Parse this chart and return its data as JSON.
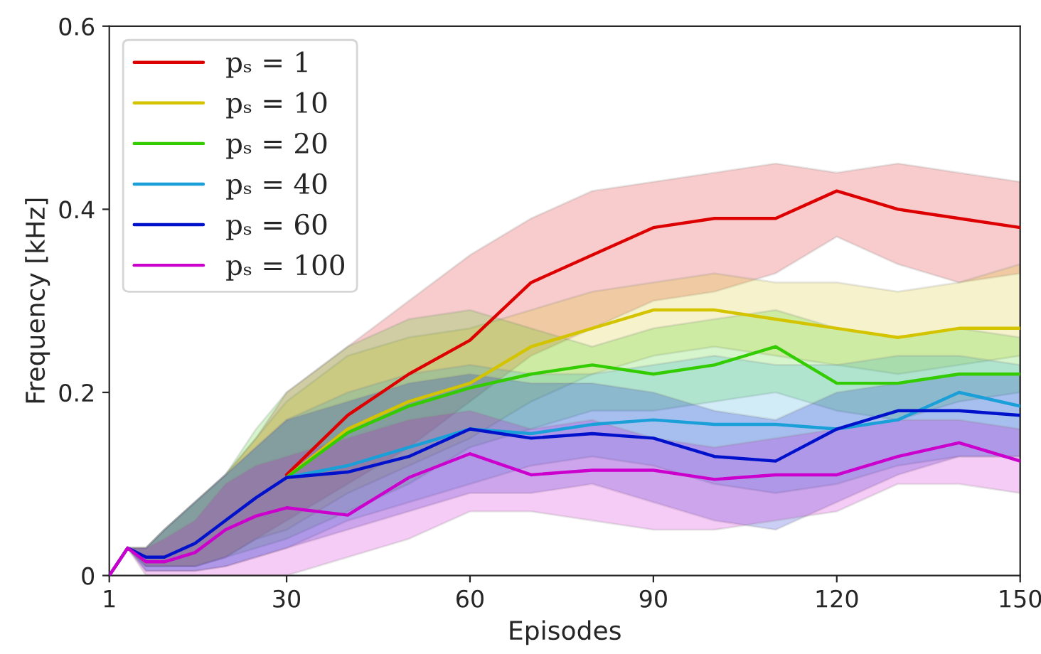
{
  "chart_data": {
    "type": "line",
    "xlabel": "Episodes",
    "ylabel": "Frequency [kHz]",
    "x": [
      1,
      4,
      7,
      10,
      15,
      20,
      25,
      30,
      40,
      50,
      60,
      70,
      80,
      90,
      100,
      110,
      120,
      130,
      140,
      150
    ],
    "xlim": [
      1,
      150
    ],
    "xticks": [
      1,
      30,
      60,
      90,
      120,
      150
    ],
    "ylim": [
      0,
      0.6
    ],
    "yticks": [
      0,
      {
        "value": 0.2,
        "label": "0.2"
      },
      {
        "value": 0.4,
        "label": "0.4"
      },
      {
        "value": 0.6,
        "label": "0.6"
      }
    ],
    "grid": false,
    "legend": "top left",
    "marker": "none",
    "line_style": "solid",
    "series": [
      {
        "name": "pₛ = 1",
        "color": "#dd0000",
        "values": [
          null,
          null,
          null,
          null,
          null,
          null,
          null,
          0.11,
          0.175,
          0.22,
          0.257,
          0.32,
          0.35,
          0.38,
          0.39,
          0.39,
          0.42,
          0.4,
          0.39,
          0.38
        ],
        "lower": [
          0,
          0.03,
          0.01,
          0.01,
          0.01,
          0.02,
          0.04,
          0.06,
          0.1,
          0.14,
          0.19,
          0.24,
          0.27,
          0.3,
          0.31,
          0.33,
          0.37,
          0.34,
          0.32,
          0.33
        ],
        "upper": [
          0,
          0.03,
          0.03,
          0.05,
          0.08,
          0.11,
          0.15,
          0.2,
          0.25,
          0.3,
          0.35,
          0.39,
          0.42,
          0.43,
          0.44,
          0.45,
          0.44,
          0.45,
          0.44,
          0.43
        ]
      },
      {
        "name": "pₛ = 10",
        "color": "#d4c400",
        "values": [
          null,
          null,
          null,
          null,
          null,
          null,
          null,
          0.107,
          0.16,
          0.19,
          0.21,
          0.25,
          0.27,
          0.29,
          0.29,
          0.28,
          0.27,
          0.26,
          0.27,
          0.27
        ],
        "lower": [
          0,
          0.03,
          0.01,
          0.01,
          0.01,
          0.02,
          0.04,
          0.05,
          0.09,
          0.12,
          0.15,
          0.19,
          0.22,
          0.24,
          0.25,
          0.24,
          0.23,
          0.22,
          0.23,
          0.24
        ],
        "upper": [
          0,
          0.03,
          0.03,
          0.05,
          0.08,
          0.11,
          0.15,
          0.19,
          0.24,
          0.26,
          0.27,
          0.29,
          0.31,
          0.32,
          0.33,
          0.32,
          0.32,
          0.31,
          0.32,
          0.34
        ]
      },
      {
        "name": "pₛ = 20",
        "color": "#33cc00",
        "values": [
          null,
          null,
          null,
          null,
          null,
          null,
          null,
          0.107,
          0.156,
          0.185,
          0.205,
          0.22,
          0.23,
          0.22,
          0.23,
          0.25,
          0.21,
          0.21,
          0.22,
          0.22
        ],
        "lower": [
          0,
          0.03,
          0.01,
          0.01,
          0.01,
          0.02,
          0.03,
          0.04,
          0.07,
          0.1,
          0.14,
          0.16,
          0.18,
          0.18,
          0.19,
          0.2,
          0.18,
          0.17,
          0.19,
          0.2
        ],
        "upper": [
          0,
          0.03,
          0.03,
          0.05,
          0.08,
          0.11,
          0.16,
          0.2,
          0.25,
          0.28,
          0.29,
          0.27,
          0.25,
          0.27,
          0.28,
          0.29,
          0.27,
          0.26,
          0.27,
          0.26
        ]
      },
      {
        "name": "pₛ = 40",
        "color": "#1a9fd9",
        "values": [
          null,
          null,
          null,
          null,
          null,
          null,
          null,
          0.107,
          0.12,
          0.14,
          0.16,
          0.155,
          0.165,
          0.17,
          0.165,
          0.165,
          0.16,
          0.17,
          0.2,
          0.185
        ],
        "lower": [
          0,
          0.03,
          0.005,
          0.005,
          0.005,
          0.01,
          0.02,
          0.03,
          0.06,
          0.08,
          0.1,
          0.12,
          0.13,
          0.12,
          0.1,
          0.09,
          0.1,
          0.12,
          0.13,
          0.13
        ],
        "upper": [
          0,
          0.03,
          0.03,
          0.05,
          0.08,
          0.11,
          0.14,
          0.17,
          0.2,
          0.22,
          0.23,
          0.22,
          0.22,
          0.23,
          0.24,
          0.23,
          0.23,
          0.24,
          0.24,
          0.23
        ]
      },
      {
        "name": "pₛ = 60",
        "color": "#0011cc",
        "values": [
          0,
          0.03,
          0.02,
          0.02,
          0.035,
          0.06,
          0.085,
          0.107,
          0.113,
          0.13,
          0.16,
          0.15,
          0.155,
          0.15,
          0.13,
          0.125,
          0.16,
          0.18,
          0.18,
          0.175
        ],
        "lower": [
          0,
          0.03,
          0.005,
          0.005,
          0.005,
          0.01,
          0.02,
          0.03,
          0.05,
          0.07,
          0.09,
          0.09,
          0.1,
          0.08,
          0.06,
          0.05,
          0.08,
          0.11,
          0.13,
          0.13
        ],
        "upper": [
          0,
          0.03,
          0.03,
          0.05,
          0.08,
          0.11,
          0.14,
          0.17,
          0.19,
          0.21,
          0.22,
          0.21,
          0.21,
          0.2,
          0.18,
          0.17,
          0.2,
          0.21,
          0.22,
          0.22
        ]
      },
      {
        "name": "pₛ = 100",
        "color": "#cc00cc",
        "values": [
          0,
          0.03,
          0.015,
          0.015,
          0.025,
          0.05,
          0.065,
          0.074,
          0.066,
          0.107,
          0.133,
          0.11,
          0.115,
          0.115,
          0.105,
          0.11,
          0.11,
          0.13,
          0.145,
          0.125
        ],
        "lower": [
          0,
          0.03,
          0.0,
          0.0,
          0.0,
          0.0,
          0.0,
          0.0,
          0.02,
          0.04,
          0.07,
          0.07,
          0.06,
          0.05,
          0.05,
          0.06,
          0.07,
          0.1,
          0.1,
          0.09
        ],
        "upper": [
          0,
          0.03,
          0.03,
          0.04,
          0.06,
          0.1,
          0.12,
          0.13,
          0.15,
          0.17,
          0.18,
          0.16,
          0.17,
          0.15,
          0.14,
          0.15,
          0.16,
          0.17,
          0.17,
          0.16
        ]
      }
    ]
  }
}
